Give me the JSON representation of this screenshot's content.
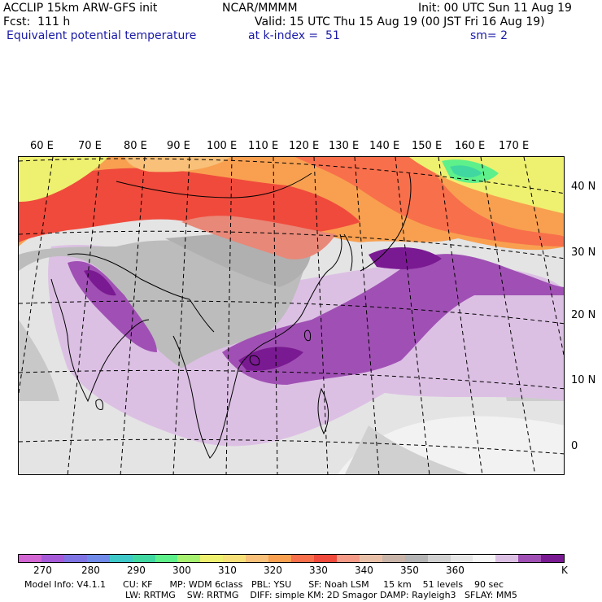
{
  "header": {
    "model": "ACCLIP 15km ARW-GFS init",
    "center": "NCAR/MMMM",
    "init": "Init: 00 UTC Sun 11 Aug 19",
    "fcst": "Fcst:  111 h",
    "valid": "Valid: 15 UTC Thu 15 Aug 19 (00 JST Fri 16 Aug 19)",
    "field": "Equivalent potential temperature",
    "level": "at k-index =  51",
    "smooth": "sm= 2"
  },
  "map": {
    "lon_labels": [
      "60 E",
      "70 E",
      "80 E",
      "90 E",
      "100 E",
      "110 E",
      "120 E",
      "130 E",
      "140 E",
      "150 E",
      "160 E",
      "170 E"
    ],
    "lat_labels": [
      "40 N",
      "30 N",
      "20 N",
      "10 N",
      "0"
    ]
  },
  "colorbar": {
    "colors": [
      "#d266d2",
      "#a65ad8",
      "#7f74e3",
      "#6f8ae8",
      "#3fc8c8",
      "#40d8a0",
      "#5ef08a",
      "#a6f270",
      "#eef070",
      "#f8e078",
      "#f8c078",
      "#f8a050",
      "#f86f4b",
      "#f04a3c",
      "#f49a86",
      "#e8c0a8",
      "#c8b4a8",
      "#b4b4b4",
      "#d0d0d0",
      "#e6e6e6",
      "#f6f6f6",
      "#dcc0e4",
      "#a050b4",
      "#7a1a92"
    ],
    "labels": [
      "270",
      "280",
      "290",
      "300",
      "310",
      "320",
      "330",
      "340",
      "350",
      "360",
      "K"
    ]
  },
  "model_info": {
    "line1": "Model Info: V4.1.1      CU: KF      MP: WDM 6class   PBL: YSU      SF: Noah LSM     15 km    51 levels    90 sec",
    "line2": "LW: RRTMG    SW: RRTMG    DIFF: simple KM: 2D Smagor DAMP: Rayleigh3   SFLAY: MM5"
  }
}
